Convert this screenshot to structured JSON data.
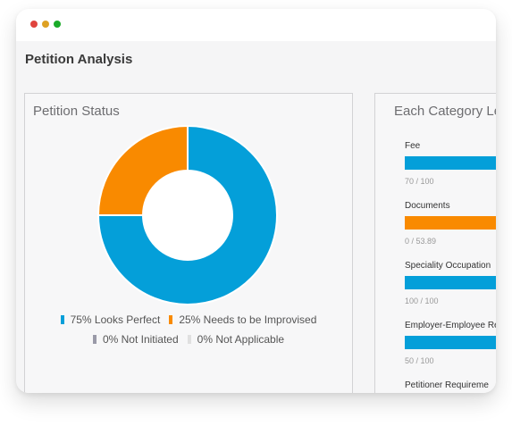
{
  "page": {
    "title": "Petition Analysis"
  },
  "status_panel": {
    "title": "Petition Status",
    "legend": [
      {
        "label": "75% Looks Perfect",
        "color": "#049fd9"
      },
      {
        "label": "25% Needs to be Improvised",
        "color": "#f98a00"
      },
      {
        "label": "0% Not Initiated",
        "color": "#9a9aa8"
      },
      {
        "label": "0% Not Applicable",
        "color": "#e0e0e0"
      }
    ]
  },
  "chart_data": {
    "type": "pie",
    "donut": true,
    "categories": [
      "Looks Perfect",
      "Needs to be Improvised",
      "Not Initiated",
      "Not Applicable"
    ],
    "values": [
      75,
      25,
      0,
      0
    ],
    "colors": [
      "#049fd9",
      "#f98a00",
      "#9a9aa8",
      "#e0e0e0"
    ],
    "legend_position": "bottom"
  },
  "category_panel": {
    "title": "Each Category Le",
    "items": [
      {
        "label": "Fee",
        "score": "70 / 100",
        "color": "#049fd9"
      },
      {
        "label": "Documents",
        "score": "0 / 53.89",
        "color": "#f98a00"
      },
      {
        "label": "Speciality Occupation",
        "score": "100 / 100",
        "color": "#049fd9"
      },
      {
        "label": "Employer-Employee Re",
        "score": "50 / 100",
        "color": "#049fd9"
      },
      {
        "label": "Petitioner Requireme",
        "score": "",
        "color": "#049fd9"
      }
    ]
  }
}
